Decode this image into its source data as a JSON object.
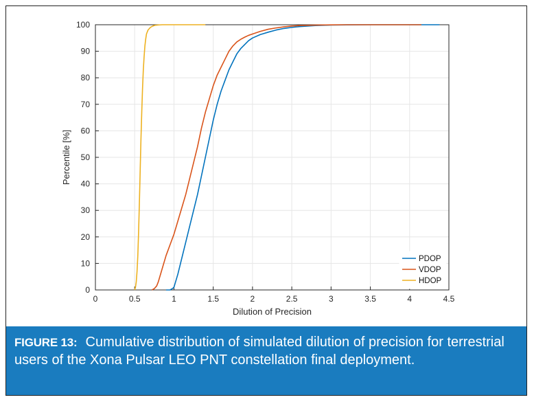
{
  "figure": {
    "caption_label": "FIGURE 13:",
    "caption_text": "Cumulative distribution of simulated dilution of precision for terrestrial users of the Xona Pulsar LEO PNT constellation final deployment.",
    "caption_bg_color": "#1a7cbf",
    "caption_text_color": "#ffffff"
  },
  "chart_data": {
    "type": "line",
    "title": "",
    "xlabel": "Dilution of Precision",
    "ylabel": "Percentile [%]",
    "xlim": [
      0,
      4.5
    ],
    "ylim": [
      0,
      100
    ],
    "xticks": [
      0,
      0.5,
      1,
      1.5,
      2,
      2.5,
      3,
      3.5,
      4,
      4.5
    ],
    "xtick_labels": [
      "0",
      "0.5",
      "1",
      "1.5",
      "2",
      "2.5",
      "3",
      "3.5",
      "4",
      "4.5"
    ],
    "yticks": [
      0,
      10,
      20,
      30,
      40,
      50,
      60,
      70,
      80,
      90,
      100
    ],
    "ytick_labels": [
      "0",
      "10",
      "20",
      "30",
      "40",
      "50",
      "60",
      "70",
      "80",
      "90",
      "100"
    ],
    "grid": true,
    "legend_position": "bottom-right",
    "series": [
      {
        "name": "PDOP",
        "color": "#0072bd",
        "x": [
          0.9,
          0.95,
          0.98,
          1.0,
          1.02,
          1.05,
          1.1,
          1.15,
          1.2,
          1.25,
          1.3,
          1.35,
          1.4,
          1.45,
          1.5,
          1.55,
          1.6,
          1.65,
          1.7,
          1.75,
          1.8,
          1.85,
          1.9,
          1.95,
          2.0,
          2.1,
          2.2,
          2.3,
          2.4,
          2.5,
          2.6,
          2.7,
          2.8,
          2.9,
          3.0,
          3.2,
          3.5,
          4.0,
          4.38
        ],
        "y": [
          0,
          0,
          0.5,
          1,
          3,
          6,
          12,
          18,
          24,
          30,
          36,
          43,
          50,
          57,
          64,
          70,
          75,
          79,
          83,
          86,
          89,
          91,
          92.5,
          94,
          95,
          96.3,
          97.2,
          98,
          98.6,
          99.0,
          99.3,
          99.5,
          99.7,
          99.8,
          99.9,
          99.95,
          100,
          100,
          100
        ]
      },
      {
        "name": "VDOP",
        "color": "#d95319",
        "x": [
          0.72,
          0.75,
          0.78,
          0.8,
          0.83,
          0.86,
          0.9,
          0.95,
          1.0,
          1.05,
          1.1,
          1.15,
          1.2,
          1.25,
          1.3,
          1.35,
          1.4,
          1.45,
          1.5,
          1.55,
          1.6,
          1.65,
          1.7,
          1.75,
          1.8,
          1.85,
          1.9,
          1.95,
          2.0,
          2.1,
          2.2,
          2.3,
          2.4,
          2.5,
          2.6,
          2.8,
          3.0,
          3.2,
          3.5,
          4.0,
          4.15
        ],
        "y": [
          0,
          0.5,
          1.5,
          3,
          6,
          9,
          13,
          17,
          21,
          26,
          31,
          36,
          42,
          48,
          54,
          61,
          67,
          72,
          77,
          81,
          84,
          87,
          90,
          92,
          93.5,
          94.5,
          95.3,
          96,
          96.5,
          97.5,
          98.3,
          98.8,
          99.2,
          99.5,
          99.7,
          99.85,
          99.95,
          100,
          100,
          100,
          100
        ]
      },
      {
        "name": "HDOP",
        "color": "#edb120",
        "x": [
          0.5,
          0.51,
          0.52,
          0.53,
          0.54,
          0.55,
          0.56,
          0.57,
          0.58,
          0.59,
          0.6,
          0.61,
          0.62,
          0.63,
          0.64,
          0.65,
          0.67,
          0.7,
          0.73,
          0.76,
          0.8,
          0.85,
          0.9,
          1.0,
          1.2,
          1.4
        ],
        "y": [
          0,
          1,
          3,
          7,
          13,
          22,
          33,
          45,
          57,
          67,
          76,
          83,
          88,
          92,
          94.5,
          96.5,
          98,
          99,
          99.5,
          99.8,
          99.9,
          100,
          100,
          100,
          100,
          100
        ]
      }
    ]
  }
}
